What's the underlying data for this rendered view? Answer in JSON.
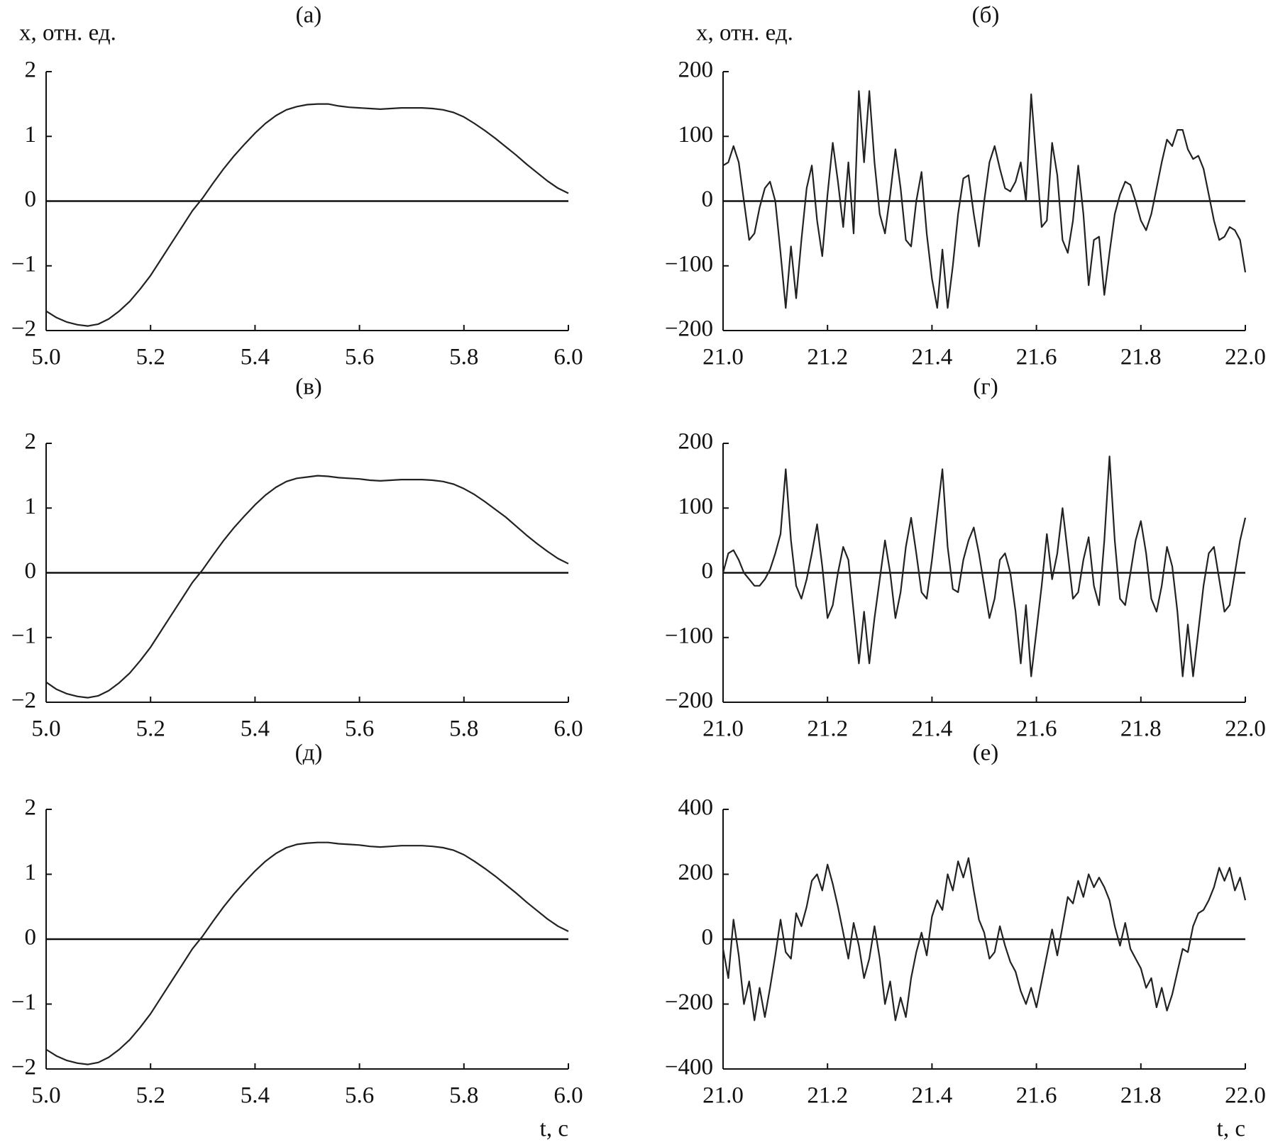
{
  "chart_data": [
    {
      "type": "line",
      "title": "(а)",
      "ylabel": "x, отн. ед.",
      "color": "#222222",
      "hline": 0,
      "x": [
        5.0,
        5.02,
        5.04,
        5.06,
        5.08,
        5.1,
        5.12,
        5.14,
        5.16,
        5.18,
        5.2,
        5.22,
        5.24,
        5.26,
        5.28,
        5.3,
        5.32,
        5.34,
        5.36,
        5.38,
        5.4,
        5.42,
        5.44,
        5.46,
        5.48,
        5.5,
        5.52,
        5.54,
        5.56,
        5.58,
        5.6,
        5.62,
        5.64,
        5.66,
        5.68,
        5.7,
        5.72,
        5.74,
        5.76,
        5.78,
        5.8,
        5.82,
        5.84,
        5.86,
        5.88,
        5.9,
        5.92,
        5.94,
        5.96,
        5.98,
        6.0
      ],
      "values": [
        -1.7,
        -1.8,
        -1.87,
        -1.91,
        -1.93,
        -1.9,
        -1.82,
        -1.7,
        -1.55,
        -1.36,
        -1.15,
        -0.9,
        -0.65,
        -0.4,
        -0.15,
        0.05,
        0.28,
        0.5,
        0.7,
        0.88,
        1.05,
        1.2,
        1.32,
        1.41,
        1.46,
        1.49,
        1.5,
        1.5,
        1.47,
        1.45,
        1.44,
        1.43,
        1.42,
        1.43,
        1.44,
        1.44,
        1.44,
        1.43,
        1.41,
        1.37,
        1.3,
        1.2,
        1.09,
        0.97,
        0.84,
        0.71,
        0.57,
        0.44,
        0.31,
        0.2,
        0.12
      ],
      "xlim": [
        5,
        6
      ],
      "xticks": [
        {
          "value": 5,
          "label": "5.0"
        },
        5.2,
        5.4,
        5.6,
        5.8,
        {
          "value": 6,
          "label": "6.0"
        }
      ],
      "ylim": [
        -2,
        2
      ],
      "yticks": [
        {
          "value": -2,
          "label": "−2"
        },
        {
          "value": -1,
          "label": "−1"
        },
        0,
        1,
        2
      ]
    },
    {
      "type": "line",
      "title": "(б)",
      "ylabel": "x, отн. ед.",
      "color": "#222222",
      "hline": 0,
      "x": [
        21,
        21.01,
        21.02,
        21.03,
        21.04,
        21.05,
        21.06,
        21.07,
        21.08,
        21.09,
        21.1,
        21.11,
        21.12,
        21.13,
        21.14,
        21.15,
        21.16,
        21.17,
        21.18,
        21.19,
        21.2,
        21.21,
        21.22,
        21.23,
        21.24,
        21.25,
        21.26,
        21.27,
        21.28,
        21.29,
        21.3,
        21.31,
        21.32,
        21.33,
        21.34,
        21.35,
        21.36,
        21.37,
        21.38,
        21.39,
        21.4,
        21.41,
        21.42,
        21.43,
        21.44,
        21.45,
        21.46,
        21.47,
        21.48,
        21.49,
        21.5,
        21.51,
        21.52,
        21.53,
        21.54,
        21.55,
        21.56,
        21.57,
        21.58,
        21.59,
        21.6,
        21.61,
        21.62,
        21.63,
        21.64,
        21.65,
        21.66,
        21.67,
        21.68,
        21.69,
        21.7,
        21.71,
        21.72,
        21.73,
        21.74,
        21.75,
        21.76,
        21.77,
        21.78,
        21.79,
        21.8,
        21.81,
        21.82,
        21.83,
        21.84,
        21.85,
        21.86,
        21.87,
        21.88,
        21.89,
        21.9,
        21.91,
        21.92,
        21.93,
        21.94,
        21.95,
        21.96,
        21.97,
        21.98,
        21.99,
        22
      ],
      "values": [
        55,
        60,
        85,
        60,
        0,
        -60,
        -50,
        -10,
        20,
        30,
        0,
        -80,
        -165,
        -70,
        -150,
        -60,
        20,
        55,
        -30,
        -85,
        10,
        90,
        30,
        -40,
        60,
        -50,
        170,
        60,
        170,
        60,
        -20,
        -50,
        10,
        80,
        20,
        -60,
        -70,
        0,
        45,
        -50,
        -120,
        -165,
        -75,
        -165,
        -100,
        -20,
        35,
        40,
        -20,
        -70,
        0,
        60,
        85,
        50,
        20,
        15,
        30,
        60,
        0,
        165,
        60,
        -40,
        -30,
        90,
        40,
        -60,
        -80,
        -30,
        55,
        -20,
        -130,
        -60,
        -55,
        -145,
        -80,
        -20,
        10,
        30,
        25,
        0,
        -30,
        -45,
        -20,
        20,
        60,
        95,
        85,
        110,
        110,
        80,
        65,
        70,
        50,
        10,
        -30,
        -60,
        -55,
        -40,
        -45,
        -60,
        -110
      ],
      "xlim": [
        21,
        22
      ],
      "xticks": [
        {
          "value": 21,
          "label": "21.0"
        },
        21.2,
        21.4,
        21.6,
        21.8,
        {
          "value": 22,
          "label": "22.0"
        }
      ],
      "ylim": [
        -200,
        200
      ],
      "yticks": [
        {
          "value": -200,
          "label": "−200"
        },
        {
          "value": -100,
          "label": "−100"
        },
        0,
        100,
        200
      ]
    },
    {
      "type": "line",
      "title": "(в)",
      "color": "#222222",
      "hline": 0,
      "x": [
        5.0,
        5.02,
        5.04,
        5.06,
        5.08,
        5.1,
        5.12,
        5.14,
        5.16,
        5.18,
        5.2,
        5.22,
        5.24,
        5.26,
        5.28,
        5.3,
        5.32,
        5.34,
        5.36,
        5.38,
        5.4,
        5.42,
        5.44,
        5.46,
        5.48,
        5.5,
        5.52,
        5.54,
        5.56,
        5.58,
        5.6,
        5.62,
        5.64,
        5.66,
        5.68,
        5.7,
        5.72,
        5.74,
        5.76,
        5.78,
        5.8,
        5.82,
        5.84,
        5.86,
        5.88,
        5.9,
        5.92,
        5.94,
        5.96,
        5.98,
        6.0
      ],
      "values": [
        -1.69,
        -1.8,
        -1.87,
        -1.91,
        -1.93,
        -1.9,
        -1.82,
        -1.7,
        -1.55,
        -1.36,
        -1.15,
        -0.9,
        -0.65,
        -0.4,
        -0.15,
        0.05,
        0.28,
        0.5,
        0.7,
        0.88,
        1.05,
        1.2,
        1.32,
        1.41,
        1.46,
        1.48,
        1.5,
        1.49,
        1.47,
        1.46,
        1.45,
        1.43,
        1.42,
        1.43,
        1.44,
        1.44,
        1.44,
        1.43,
        1.41,
        1.37,
        1.3,
        1.21,
        1.1,
        0.98,
        0.86,
        0.72,
        0.58,
        0.45,
        0.33,
        0.22,
        0.14
      ],
      "xlim": [
        5,
        6
      ],
      "xticks": [
        {
          "value": 5,
          "label": "5.0"
        },
        5.2,
        5.4,
        5.6,
        5.8,
        {
          "value": 6,
          "label": "6.0"
        }
      ],
      "ylim": [
        -2,
        2
      ],
      "yticks": [
        {
          "value": -2,
          "label": "−2"
        },
        {
          "value": -1,
          "label": "−1"
        },
        0,
        1,
        2
      ]
    },
    {
      "type": "line",
      "title": "(г)",
      "color": "#222222",
      "hline": 0,
      "x": [
        21,
        21.01,
        21.02,
        21.03,
        21.04,
        21.05,
        21.06,
        21.07,
        21.08,
        21.09,
        21.1,
        21.11,
        21.12,
        21.13,
        21.14,
        21.15,
        21.16,
        21.17,
        21.18,
        21.19,
        21.2,
        21.21,
        21.22,
        21.23,
        21.24,
        21.25,
        21.26,
        21.27,
        21.28,
        21.29,
        21.3,
        21.31,
        21.32,
        21.33,
        21.34,
        21.35,
        21.36,
        21.37,
        21.38,
        21.39,
        21.4,
        21.41,
        21.42,
        21.43,
        21.44,
        21.45,
        21.46,
        21.47,
        21.48,
        21.49,
        21.5,
        21.51,
        21.52,
        21.53,
        21.54,
        21.55,
        21.56,
        21.57,
        21.58,
        21.59,
        21.6,
        21.61,
        21.62,
        21.63,
        21.64,
        21.65,
        21.66,
        21.67,
        21.68,
        21.69,
        21.7,
        21.71,
        21.72,
        21.73,
        21.74,
        21.75,
        21.76,
        21.77,
        21.78,
        21.79,
        21.8,
        21.81,
        21.82,
        21.83,
        21.84,
        21.85,
        21.86,
        21.87,
        21.88,
        21.89,
        21.9,
        21.91,
        21.92,
        21.93,
        21.94,
        21.95,
        21.96,
        21.97,
        21.98,
        21.99,
        22
      ],
      "values": [
        0,
        30,
        35,
        20,
        0,
        -10,
        -20,
        -20,
        -10,
        5,
        30,
        60,
        160,
        50,
        -20,
        -40,
        -10,
        30,
        75,
        10,
        -70,
        -50,
        0,
        40,
        20,
        -60,
        -140,
        -60,
        -140,
        -70,
        -10,
        50,
        0,
        -70,
        -30,
        40,
        85,
        30,
        -30,
        -40,
        20,
        90,
        160,
        40,
        -25,
        -30,
        20,
        50,
        70,
        30,
        -20,
        -70,
        -40,
        20,
        30,
        0,
        -60,
        -140,
        -50,
        -160,
        -90,
        -20,
        60,
        -10,
        30,
        100,
        30,
        -40,
        -30,
        20,
        55,
        -20,
        -50,
        50,
        180,
        50,
        -40,
        -50,
        0,
        50,
        80,
        30,
        -40,
        -60,
        -20,
        40,
        10,
        -60,
        -160,
        -80,
        -160,
        -90,
        -20,
        30,
        40,
        -10,
        -60,
        -50,
        0,
        50,
        85
      ],
      "xlim": [
        21,
        22
      ],
      "xticks": [
        {
          "value": 21,
          "label": "21.0"
        },
        21.2,
        21.4,
        21.6,
        21.8,
        {
          "value": 22,
          "label": "22.0"
        }
      ],
      "ylim": [
        -200,
        200
      ],
      "yticks": [
        {
          "value": -200,
          "label": "−200"
        },
        {
          "value": -100,
          "label": "−100"
        },
        0,
        100,
        200
      ]
    },
    {
      "type": "line",
      "title": "(д)",
      "xlabel": "t, с",
      "color": "#222222",
      "hline": 0,
      "x": [
        5.0,
        5.02,
        5.04,
        5.06,
        5.08,
        5.1,
        5.12,
        5.14,
        5.16,
        5.18,
        5.2,
        5.22,
        5.24,
        5.26,
        5.28,
        5.3,
        5.32,
        5.34,
        5.36,
        5.38,
        5.4,
        5.42,
        5.44,
        5.46,
        5.48,
        5.5,
        5.52,
        5.54,
        5.56,
        5.58,
        5.6,
        5.62,
        5.64,
        5.66,
        5.68,
        5.7,
        5.72,
        5.74,
        5.76,
        5.78,
        5.8,
        5.82,
        5.84,
        5.86,
        5.88,
        5.9,
        5.92,
        5.94,
        5.96,
        5.98,
        6.0
      ],
      "values": [
        -1.7,
        -1.8,
        -1.87,
        -1.91,
        -1.93,
        -1.9,
        -1.82,
        -1.7,
        -1.55,
        -1.36,
        -1.15,
        -0.9,
        -0.65,
        -0.4,
        -0.15,
        0.05,
        0.28,
        0.5,
        0.7,
        0.88,
        1.05,
        1.2,
        1.32,
        1.41,
        1.46,
        1.48,
        1.49,
        1.49,
        1.47,
        1.46,
        1.45,
        1.43,
        1.42,
        1.43,
        1.44,
        1.44,
        1.44,
        1.43,
        1.41,
        1.37,
        1.3,
        1.2,
        1.09,
        0.97,
        0.84,
        0.71,
        0.57,
        0.44,
        0.31,
        0.2,
        0.12
      ],
      "xlim": [
        5,
        6
      ],
      "xticks": [
        {
          "value": 5,
          "label": "5.0"
        },
        5.2,
        5.4,
        5.6,
        5.8,
        {
          "value": 6,
          "label": "6.0"
        }
      ],
      "ylim": [
        -2,
        2
      ],
      "yticks": [
        {
          "value": -2,
          "label": "−2"
        },
        {
          "value": -1,
          "label": "−1"
        },
        0,
        1,
        2
      ]
    },
    {
      "type": "line",
      "title": "(е)",
      "xlabel": "t, с",
      "color": "#222222",
      "hline": 0,
      "x": [
        21,
        21.01,
        21.02,
        21.03,
        21.04,
        21.05,
        21.06,
        21.07,
        21.08,
        21.09,
        21.1,
        21.11,
        21.12,
        21.13,
        21.14,
        21.15,
        21.16,
        21.17,
        21.18,
        21.19,
        21.2,
        21.21,
        21.22,
        21.23,
        21.24,
        21.25,
        21.26,
        21.27,
        21.28,
        21.29,
        21.3,
        21.31,
        21.32,
        21.33,
        21.34,
        21.35,
        21.36,
        21.37,
        21.38,
        21.39,
        21.4,
        21.41,
        21.42,
        21.43,
        21.44,
        21.45,
        21.46,
        21.47,
        21.48,
        21.49,
        21.5,
        21.51,
        21.52,
        21.53,
        21.54,
        21.55,
        21.56,
        21.57,
        21.58,
        21.59,
        21.6,
        21.61,
        21.62,
        21.63,
        21.64,
        21.65,
        21.66,
        21.67,
        21.68,
        21.69,
        21.7,
        21.71,
        21.72,
        21.73,
        21.74,
        21.75,
        21.76,
        21.77,
        21.78,
        21.79,
        21.8,
        21.81,
        21.82,
        21.83,
        21.84,
        21.85,
        21.86,
        21.87,
        21.88,
        21.89,
        21.9,
        21.91,
        21.92,
        21.93,
        21.94,
        21.95,
        21.96,
        21.97,
        21.98,
        21.99,
        22
      ],
      "values": [
        -30,
        -120,
        60,
        -50,
        -200,
        -130,
        -250,
        -150,
        -240,
        -150,
        -50,
        60,
        -40,
        -60,
        80,
        40,
        100,
        180,
        200,
        150,
        230,
        170,
        100,
        20,
        -60,
        50,
        -20,
        -120,
        -60,
        40,
        -60,
        -200,
        -130,
        -250,
        -180,
        -240,
        -120,
        -40,
        20,
        -50,
        70,
        120,
        90,
        200,
        150,
        240,
        190,
        250,
        150,
        60,
        20,
        -60,
        -40,
        40,
        -20,
        -70,
        -100,
        -160,
        -200,
        -150,
        -210,
        -130,
        -50,
        30,
        -50,
        40,
        130,
        110,
        180,
        130,
        200,
        160,
        190,
        160,
        120,
        40,
        -20,
        50,
        -30,
        -60,
        -90,
        -150,
        -120,
        -210,
        -150,
        -220,
        -170,
        -100,
        -30,
        -40,
        40,
        80,
        90,
        120,
        160,
        220,
        180,
        220,
        150,
        190,
        120
      ],
      "xlim": [
        21,
        22
      ],
      "xticks": [
        {
          "value": 21,
          "label": "21.0"
        },
        21.2,
        21.4,
        21.6,
        21.8,
        {
          "value": 22,
          "label": "22.0"
        }
      ],
      "ylim": [
        -400,
        400
      ],
      "yticks": [
        {
          "value": -400,
          "label": "−400"
        },
        {
          "value": -200,
          "label": "−200"
        },
        0,
        200,
        400
      ]
    }
  ]
}
